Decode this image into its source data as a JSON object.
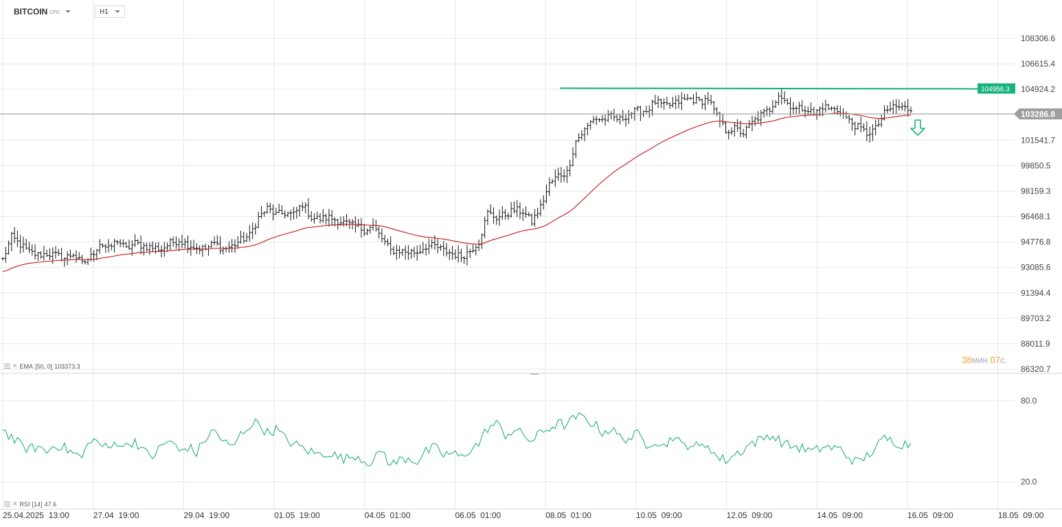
{
  "header": {
    "instrument": "BITCOIN",
    "instrument_type": "CFD",
    "timeframe": "H1"
  },
  "indicators": {
    "ema_label": "EMA",
    "ema_params": "[50, 0]",
    "ema_value": "103373.3",
    "rsi_label": "RSI",
    "rsi_params": "[14]",
    "rsi_value": "47.6"
  },
  "countdown": {
    "minutes": "38",
    "min_unit": "мин",
    "seconds": "07",
    "sec_unit": "с."
  },
  "colors": {
    "candle": "#111111",
    "ema": "#c62828",
    "rsi": "#26b07a",
    "level": "#17b37e",
    "current_price": "#9e9e9e",
    "grid": "#e3e7eb"
  },
  "chart_data": {
    "type": "candlestick",
    "price_axis_ticks": [
      "108306.6",
      "106615.4",
      "104924.2",
      "103286.8",
      "101541.7",
      "99850.5",
      "98159.3",
      "96468.1",
      "94776.8",
      "93085.6",
      "91394.4",
      "89703.2",
      "88011.9",
      "86320.7"
    ],
    "rsi_axis_ticks": [
      "80.0",
      "20.0"
    ],
    "time_axis_ticks": [
      "25.04.2025  13:00",
      "27.04  19:00",
      "29.04  19:00",
      "01.05  19:00",
      "04.05  01:00",
      "06.05  01:00",
      "08.05  01:00",
      "10.05  09:00",
      "12.05  09:00",
      "14.05  09:00",
      "16.05  09:00",
      "18.05  09:00"
    ],
    "ylim": [
      86320.7,
      108306.6
    ],
    "rsi_ylim": [
      20,
      80
    ],
    "current_price": "103286.8",
    "horizontal_level": "104956.3",
    "signal": "down",
    "close_path": [
      [
        0,
        93600
      ],
      [
        3,
        95100
      ],
      [
        6,
        94600
      ],
      [
        9,
        94100
      ],
      [
        12,
        93900
      ],
      [
        15,
        94000
      ],
      [
        18,
        93900
      ],
      [
        21,
        93700
      ],
      [
        24,
        94000
      ],
      [
        27,
        93300
      ],
      [
        30,
        93800
      ],
      [
        33,
        94700
      ],
      [
        36,
        94300
      ],
      [
        39,
        94900
      ],
      [
        42,
        94300
      ],
      [
        45,
        94700
      ],
      [
        48,
        94500
      ],
      [
        51,
        94400
      ],
      [
        54,
        94300
      ],
      [
        57,
        94700
      ],
      [
        60,
        94900
      ],
      [
        63,
        94600
      ],
      [
        66,
        94400
      ],
      [
        69,
        94300
      ],
      [
        72,
        94700
      ],
      [
        75,
        94300
      ],
      [
        78,
        94500
      ],
      [
        81,
        94900
      ],
      [
        84,
        95200
      ],
      [
        87,
        96400
      ],
      [
        90,
        97000
      ],
      [
        93,
        96600
      ],
      [
        96,
        96700
      ],
      [
        99,
        96600
      ],
      [
        102,
        97300
      ],
      [
        105,
        96400
      ],
      [
        108,
        96300
      ],
      [
        111,
        96400
      ],
      [
        114,
        96200
      ],
      [
        117,
        96000
      ],
      [
        120,
        95800
      ],
      [
        123,
        95600
      ],
      [
        126,
        95800
      ],
      [
        129,
        95000
      ],
      [
        132,
        94200
      ],
      [
        135,
        94200
      ],
      [
        138,
        94100
      ],
      [
        141,
        94100
      ],
      [
        144,
        94500
      ],
      [
        147,
        94500
      ],
      [
        150,
        94200
      ],
      [
        153,
        94000
      ],
      [
        156,
        93800
      ],
      [
        159,
        94200
      ],
      [
        162,
        94800
      ],
      [
        165,
        96700
      ],
      [
        168,
        96400
      ],
      [
        171,
        96600
      ],
      [
        174,
        96900
      ],
      [
        177,
        96800
      ],
      [
        180,
        96100
      ],
      [
        183,
        97100
      ],
      [
        186,
        98600
      ],
      [
        189,
        99200
      ],
      [
        192,
        99400
      ],
      [
        195,
        101500
      ],
      [
        198,
        102200
      ],
      [
        201,
        103000
      ],
      [
        204,
        102900
      ],
      [
        207,
        103100
      ],
      [
        210,
        102900
      ],
      [
        213,
        103300
      ],
      [
        216,
        103500
      ],
      [
        219,
        103500
      ],
      [
        222,
        104100
      ],
      [
        225,
        103800
      ],
      [
        228,
        103900
      ],
      [
        231,
        104200
      ],
      [
        234,
        104300
      ],
      [
        237,
        104100
      ],
      [
        240,
        104300
      ],
      [
        243,
        103100
      ],
      [
        246,
        102200
      ],
      [
        249,
        102300
      ],
      [
        252,
        102000
      ],
      [
        255,
        102700
      ],
      [
        258,
        103200
      ],
      [
        261,
        103600
      ],
      [
        264,
        104600
      ],
      [
        267,
        104000
      ],
      [
        270,
        103600
      ],
      [
        273,
        103700
      ],
      [
        276,
        103300
      ],
      [
        279,
        103800
      ],
      [
        282,
        103600
      ],
      [
        285,
        103500
      ],
      [
        288,
        102800
      ],
      [
        291,
        102400
      ],
      [
        294,
        102000
      ],
      [
        297,
        102300
      ],
      [
        300,
        103300
      ],
      [
        303,
        103800
      ],
      [
        306,
        103700
      ],
      [
        309,
        103600
      ]
    ],
    "rsi_path": [
      [
        0,
        59
      ],
      [
        3,
        53
      ],
      [
        6,
        47
      ],
      [
        9,
        44
      ],
      [
        12,
        46
      ],
      [
        15,
        42
      ],
      [
        18,
        48
      ],
      [
        21,
        45
      ],
      [
        24,
        41
      ],
      [
        27,
        38
      ],
      [
        30,
        52
      ],
      [
        33,
        48
      ],
      [
        36,
        44
      ],
      [
        39,
        50
      ],
      [
        42,
        46
      ],
      [
        45,
        51
      ],
      [
        48,
        42
      ],
      [
        51,
        39
      ],
      [
        54,
        46
      ],
      [
        57,
        51
      ],
      [
        60,
        42
      ],
      [
        63,
        46
      ],
      [
        66,
        41
      ],
      [
        69,
        52
      ],
      [
        72,
        58
      ],
      [
        75,
        50
      ],
      [
        78,
        45
      ],
      [
        81,
        55
      ],
      [
        84,
        62
      ],
      [
        87,
        64
      ],
      [
        90,
        56
      ],
      [
        93,
        59
      ],
      [
        96,
        52
      ],
      [
        99,
        48
      ],
      [
        102,
        45
      ],
      [
        105,
        42
      ],
      [
        108,
        40
      ],
      [
        111,
        42
      ],
      [
        114,
        38
      ],
      [
        117,
        37
      ],
      [
        120,
        40
      ],
      [
        123,
        36
      ],
      [
        126,
        34
      ],
      [
        129,
        44
      ],
      [
        132,
        32
      ],
      [
        135,
        36
      ],
      [
        138,
        38
      ],
      [
        141,
        35
      ],
      [
        144,
        42
      ],
      [
        147,
        45
      ],
      [
        150,
        40
      ],
      [
        153,
        41
      ],
      [
        156,
        38
      ],
      [
        159,
        44
      ],
      [
        162,
        48
      ],
      [
        165,
        60
      ],
      [
        168,
        63
      ],
      [
        171,
        55
      ],
      [
        174,
        58
      ],
      [
        177,
        55
      ],
      [
        180,
        50
      ],
      [
        183,
        56
      ],
      [
        186,
        60
      ],
      [
        189,
        63
      ],
      [
        192,
        62
      ],
      [
        195,
        68
      ],
      [
        198,
        67
      ],
      [
        201,
        63
      ],
      [
        204,
        57
      ],
      [
        207,
        59
      ],
      [
        210,
        53
      ],
      [
        213,
        52
      ],
      [
        216,
        55
      ],
      [
        219,
        48
      ],
      [
        222,
        51
      ],
      [
        225,
        46
      ],
      [
        228,
        54
      ],
      [
        231,
        47
      ],
      [
        234,
        48
      ],
      [
        237,
        45
      ],
      [
        240,
        48
      ],
      [
        243,
        38
      ],
      [
        246,
        36
      ],
      [
        249,
        40
      ],
      [
        252,
        44
      ],
      [
        255,
        49
      ],
      [
        258,
        51
      ],
      [
        261,
        55
      ],
      [
        264,
        51
      ],
      [
        267,
        47
      ],
      [
        270,
        46
      ],
      [
        273,
        44
      ],
      [
        276,
        42
      ],
      [
        279,
        46
      ],
      [
        282,
        45
      ],
      [
        285,
        44
      ],
      [
        288,
        38
      ],
      [
        291,
        34
      ],
      [
        294,
        39
      ],
      [
        297,
        45
      ],
      [
        300,
        52
      ],
      [
        303,
        50
      ],
      [
        306,
        48
      ],
      [
        309,
        48
      ]
    ]
  }
}
